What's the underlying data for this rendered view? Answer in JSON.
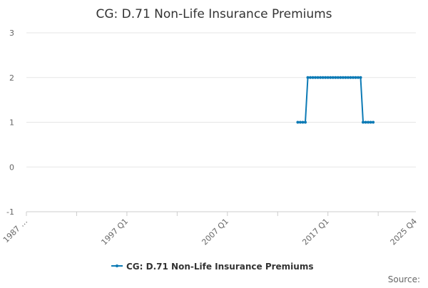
{
  "chart_data": {
    "type": "line",
    "title": "CG: D.71 Non-Life Insurance Premiums",
    "xlabel": "",
    "ylabel": "",
    "x_tick_labels": [
      "1987 …",
      "1997 Q1",
      "2007 Q1",
      "2017 Q1",
      "2025 Q4"
    ],
    "ylim": [
      -1,
      3
    ],
    "y_ticks": [
      -1,
      0,
      1,
      2,
      3
    ],
    "grid": true,
    "legend_position": "bottom",
    "source_label": "Source:",
    "series": [
      {
        "name": "CG: D.71 Non-Life Insurance Premiums",
        "color": "#0c7ab5",
        "marker": "circle",
        "x": [
          "2014 Q1",
          "2014 Q2",
          "2014 Q3",
          "2014 Q4",
          "2015 Q1",
          "2015 Q2",
          "2015 Q3",
          "2015 Q4",
          "2016 Q1",
          "2016 Q2",
          "2016 Q3",
          "2016 Q4",
          "2017 Q1",
          "2017 Q2",
          "2017 Q3",
          "2017 Q4",
          "2018 Q1",
          "2018 Q2",
          "2018 Q3",
          "2018 Q4",
          "2019 Q1",
          "2019 Q2",
          "2019 Q3",
          "2019 Q4",
          "2020 Q1",
          "2020 Q2",
          "2020 Q3",
          "2020 Q4",
          "2021 Q1",
          "2021 Q2",
          "2021 Q3"
        ],
        "values": [
          1,
          1,
          1,
          1,
          2,
          2,
          2,
          2,
          2,
          2,
          2,
          2,
          2,
          2,
          2,
          2,
          2,
          2,
          2,
          2,
          2,
          2,
          2,
          2,
          2,
          2,
          1,
          1,
          1,
          1,
          1
        ]
      }
    ]
  }
}
